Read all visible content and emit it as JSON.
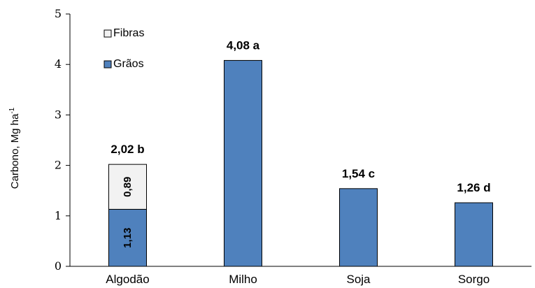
{
  "chart_data": {
    "type": "bar",
    "stacked": true,
    "categories": [
      "Algodão",
      "Milho",
      "Soja",
      "Sorgo"
    ],
    "series": [
      {
        "name": "Grãos",
        "values": [
          1.13,
          4.08,
          1.54,
          1.26
        ],
        "color": "#4f81bd"
      },
      {
        "name": "Fibras",
        "values": [
          0.89,
          0,
          0,
          0
        ],
        "color": "#f2f2f2"
      }
    ],
    "segment_labels": [
      {
        "category": "Algodão",
        "series": "Grãos",
        "text": "1,13"
      },
      {
        "category": "Algodão",
        "series": "Fibras",
        "text": "0,89"
      }
    ],
    "total_labels": [
      "2,02 b",
      "4,08 a",
      "1,54 c",
      "1,26 d"
    ],
    "ylabel": "Carbono, Mg ha",
    "ylabel_superscript": "-1",
    "ylim": [
      0,
      5
    ],
    "yticks": [
      "0",
      "1",
      "2",
      "3",
      "4",
      "5"
    ],
    "legend": {
      "position": "top-left",
      "items": [
        "Fibras",
        "Grãos"
      ]
    },
    "grid": false
  }
}
